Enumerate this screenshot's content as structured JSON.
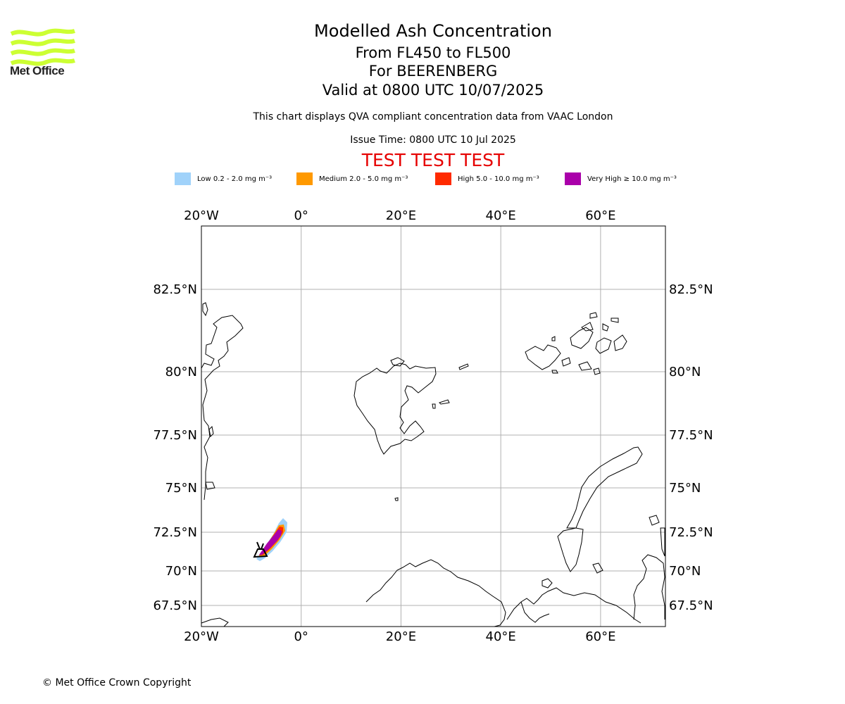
{
  "header": {
    "title": "Modelled Ash Concentration",
    "levels": "From FL450 to FL500",
    "volcano": "For BEERENBERG",
    "valid": "Valid at 0800 UTC 10/07/2025",
    "subtitle": "This chart displays QVA compliant concentration data from VAAC London",
    "issue_time": "Issue Time: 0800 UTC 10 Jul 2025",
    "test_banner": "TEST TEST TEST"
  },
  "logo": {
    "text": "Met Office",
    "color": "#ccff33"
  },
  "legend": [
    {
      "label": "Low 0.2 - 2.0 mg m⁻³",
      "color": "#a0d2fa"
    },
    {
      "label": "Medium 2.0 - 5.0 mg m⁻³",
      "color": "#ff9900"
    },
    {
      "label": "High 5.0 - 10.0 mg m⁻³",
      "color": "#ff2a00"
    },
    {
      "label": "Very High  ≥  10.0 mg m⁻³",
      "color": "#aa00aa"
    }
  ],
  "map": {
    "lon_range": [
      -20,
      73
    ],
    "lat_range": [
      66.5,
      84.5
    ],
    "lon_ticks": [
      {
        "value": -20,
        "label": "20°W"
      },
      {
        "value": 0,
        "label": "0°"
      },
      {
        "value": 20,
        "label": "20°E"
      },
      {
        "value": 40,
        "label": "40°E"
      },
      {
        "value": 60,
        "label": "60°E"
      }
    ],
    "lat_ticks": [
      {
        "value": 82.5,
        "label": "82.5°N"
      },
      {
        "value": 80,
        "label": "80°N"
      },
      {
        "value": 77.5,
        "label": "77.5°N"
      },
      {
        "value": 75,
        "label": "75°N"
      },
      {
        "value": 72.5,
        "label": "72.5°N"
      },
      {
        "value": 70,
        "label": "70°N"
      },
      {
        "value": 67.5,
        "label": "67.5°N"
      }
    ],
    "volcano": {
      "name": "BEERENBERG",
      "lon": -8.2,
      "lat": 71.1
    }
  },
  "copyright": "© Met Office Crown Copyright"
}
